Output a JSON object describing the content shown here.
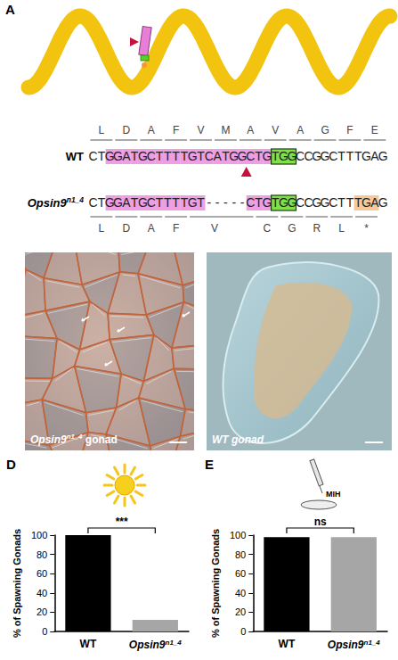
{
  "panel_A": {
    "letter": "A",
    "rows": [
      {
        "label": "WT",
        "sequence": "CTGGATGCTTTTGTCATGGCTGTGGCCGGCTTTGAG",
        "amino_acids": [
          "L",
          "D",
          "A",
          "F",
          "V",
          "M",
          "A",
          "V",
          "A",
          "G",
          "F",
          "E"
        ]
      },
      {
        "label": "Opsin9n1_4",
        "sequence": "CTGGATGCTTTTGT-----CTGTGGCCGGCTTTGAG",
        "amino_acids": [
          "L",
          "D",
          "A",
          "F",
          "V",
          "C",
          "G",
          "R",
          "L",
          "*"
        ]
      }
    ],
    "guide_sequence": [
      2,
      21
    ],
    "pam": [
      22,
      24
    ],
    "cut_site": 19
  },
  "panel_B": {
    "label": "Opsin9n1_4 gonad"
  },
  "panel_C": {
    "label": "WT gonad"
  },
  "chart_data": [
    {
      "panel": "D",
      "type": "bar",
      "categories": [
        "WT",
        "Opsin9n1_4"
      ],
      "values": [
        100,
        12
      ],
      "colors": [
        "#000000",
        "#a6a6a6"
      ],
      "ylim": [
        0,
        100
      ],
      "yticks": [
        0,
        20,
        40,
        60,
        80,
        100
      ],
      "y_label": "% of Spawning Gonads",
      "significance": "***",
      "grid": false
    },
    {
      "panel": "E",
      "type": "bar",
      "categories": [
        "WT",
        "Opsin9n1_4"
      ],
      "values": [
        98,
        98
      ],
      "colors": [
        "#000000",
        "#a6a6a6"
      ],
      "ylim": [
        0,
        100
      ],
      "yticks": [
        0,
        20,
        40,
        60,
        80,
        100
      ],
      "y_label": "% of Spawning Gonads",
      "significance": "ns",
      "annotation": "MIH",
      "grid": false
    }
  ]
}
